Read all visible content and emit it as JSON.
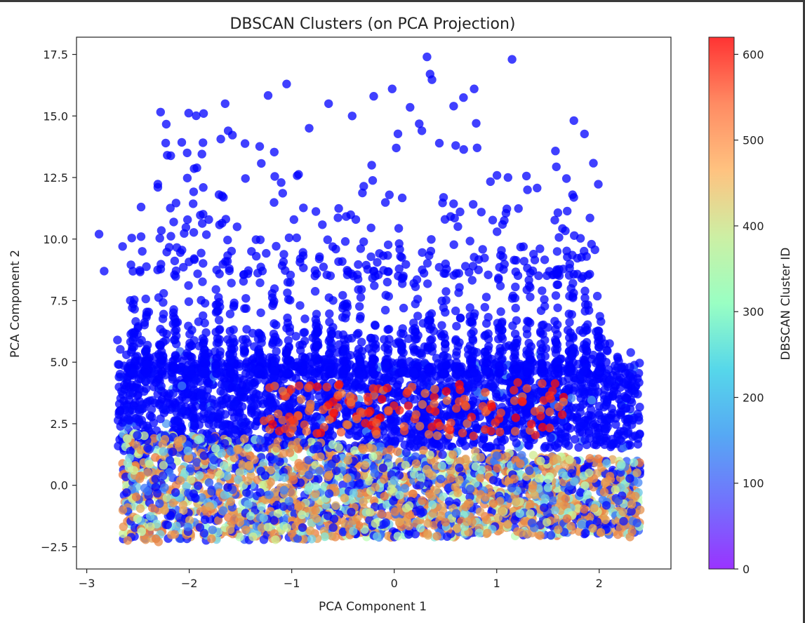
{
  "chart_data": {
    "type": "scatter",
    "title": "DBSCAN Clusters (on PCA Projection)",
    "xlabel": "PCA Component 1",
    "ylabel": "PCA Component 2",
    "xlim": [
      -3.1,
      2.7
    ],
    "ylim": [
      -3.4,
      18.2
    ],
    "xticks": [
      -3,
      -2,
      -1,
      0,
      1,
      2
    ],
    "yticks": [
      -2.5,
      0.0,
      2.5,
      5.0,
      7.5,
      10.0,
      12.5,
      15.0,
      17.5
    ],
    "xtick_labels": [
      "−3",
      "−2",
      "−1",
      "0",
      "1",
      "2"
    ],
    "ytick_labels": [
      "−2.5",
      "0.0",
      "2.5",
      "5.0",
      "7.5",
      "10.0",
      "12.5",
      "15.0",
      "17.5"
    ],
    "grid": false,
    "colorbar": {
      "label": "DBSCAN Cluster ID",
      "colormap": "rainbow",
      "min": 0,
      "max": 620,
      "ticks": [
        0,
        100,
        200,
        300,
        400,
        500,
        600
      ],
      "tick_labels": [
        "0",
        "100",
        "200",
        "300",
        "400",
        "500",
        "600"
      ]
    },
    "marker_alpha": 0.75,
    "sample_points": [
      {
        "x": 0.32,
        "y": 17.4,
        "c": 0
      },
      {
        "x": 1.15,
        "y": 17.3,
        "c": 0
      },
      {
        "x": 0.35,
        "y": 16.7,
        "c": 0
      },
      {
        "x": -1.05,
        "y": 16.3,
        "c": 0
      },
      {
        "x": 0.78,
        "y": 16.1,
        "c": 0
      },
      {
        "x": -0.02,
        "y": 16.1,
        "c": 0
      },
      {
        "x": -0.2,
        "y": 15.8,
        "c": 0
      },
      {
        "x": -0.64,
        "y": 15.5,
        "c": 0
      },
      {
        "x": -1.65,
        "y": 15.5,
        "c": 0
      },
      {
        "x": 0.58,
        "y": 15.4,
        "c": 0
      },
      {
        "x": -1.86,
        "y": 15.1,
        "c": 0
      },
      {
        "x": -0.41,
        "y": 15.0,
        "c": 0
      },
      {
        "x": 0.8,
        "y": 14.7,
        "c": 0
      },
      {
        "x": -0.83,
        "y": 14.5,
        "c": 0
      },
      {
        "x": -2.02,
        "y": 13.5,
        "c": 0
      },
      {
        "x": -2.23,
        "y": 13.9,
        "c": 0
      },
      {
        "x": 0.6,
        "y": 13.8,
        "c": 0
      },
      {
        "x": 0.02,
        "y": 13.7,
        "c": 0
      },
      {
        "x": 0.27,
        "y": 14.4,
        "c": 0
      },
      {
        "x": -1.62,
        "y": 14.4,
        "c": 0
      },
      {
        "x": -0.22,
        "y": 13.0,
        "c": 0
      },
      {
        "x": 1.11,
        "y": 12.5,
        "c": 0
      },
      {
        "x": 1.74,
        "y": 11.8,
        "c": 0
      },
      {
        "x": 1.3,
        "y": 12.0,
        "c": 0
      },
      {
        "x": -2.47,
        "y": 11.3,
        "c": 0
      },
      {
        "x": -2.88,
        "y": 10.2,
        "c": 0
      },
      {
        "x": -2.83,
        "y": 8.7,
        "c": 0
      },
      {
        "x": -2.65,
        "y": 9.7,
        "c": 0
      },
      {
        "x": -2.47,
        "y": 10.1,
        "c": 0
      },
      {
        "x": 1.83,
        "y": 8.4,
        "c": 0
      },
      {
        "x": 1.9,
        "y": 7.1,
        "c": 0
      },
      {
        "x": -2.7,
        "y": 5.9,
        "c": 0
      },
      {
        "x": -2.5,
        "y": 6.4,
        "c": 0
      },
      {
        "x": 2.0,
        "y": 5.9,
        "c": 0
      },
      {
        "x": -0.12,
        "y": 3.5,
        "c": 620
      },
      {
        "x": 0.4,
        "y": 3.0,
        "c": 600
      },
      {
        "x": -0.75,
        "y": 4.0,
        "c": 610
      },
      {
        "x": 0.25,
        "y": 2.4,
        "c": 520
      },
      {
        "x": -2.6,
        "y": 0.9,
        "c": 230
      },
      {
        "x": -2.3,
        "y": -2.3,
        "c": 510
      },
      {
        "x": -1.6,
        "y": -1.8,
        "c": 480
      },
      {
        "x": -0.9,
        "y": -1.2,
        "c": 300
      },
      {
        "x": 0.5,
        "y": -1.5,
        "c": 520
      },
      {
        "x": 1.6,
        "y": -1.8,
        "c": 490
      },
      {
        "x": 2.3,
        "y": -2.1,
        "c": 505
      },
      {
        "x": 2.4,
        "y": -1.0,
        "c": 500
      },
      {
        "x": 1.9,
        "y": 0.5,
        "c": 380
      },
      {
        "x": 0.0,
        "y": 0.2,
        "c": 150
      },
      {
        "x": -1.9,
        "y": 0.4,
        "c": 200
      },
      {
        "x": 1.0,
        "y": 1.2,
        "c": 80
      }
    ]
  }
}
